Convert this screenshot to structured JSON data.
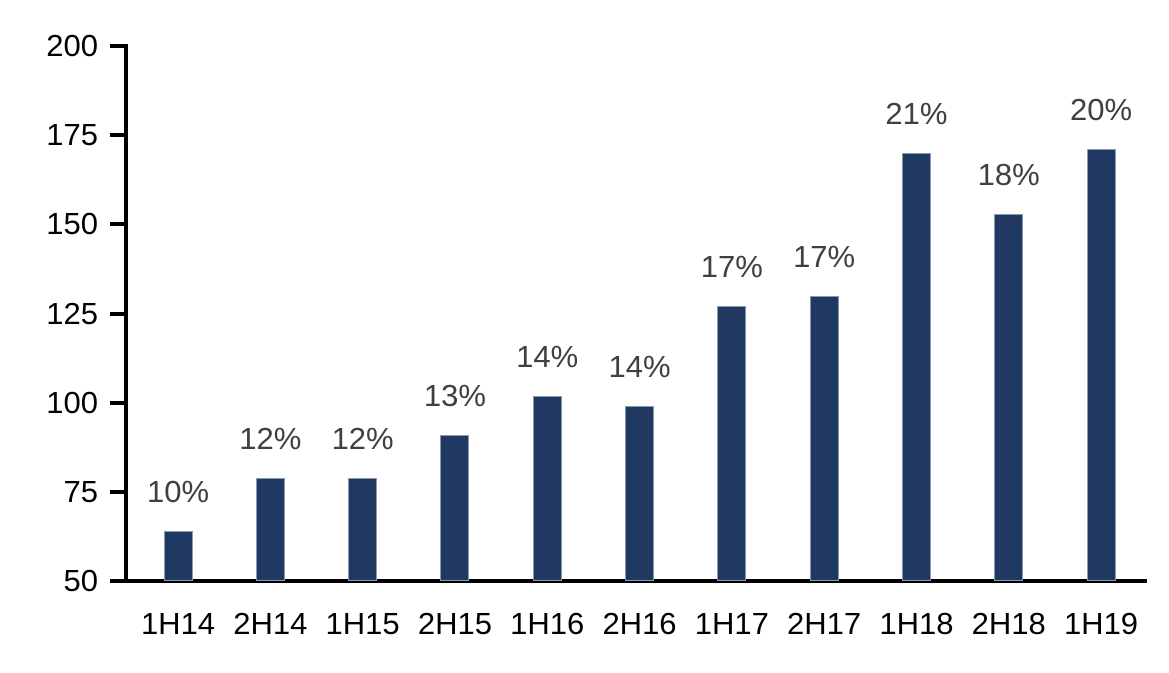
{
  "chart_data": {
    "type": "bar",
    "title": "",
    "xlabel": "",
    "ylabel": "",
    "categories": [
      "1H14",
      "2H14",
      "1H15",
      "2H15",
      "1H16",
      "2H16",
      "1H17",
      "2H17",
      "1H18",
      "2H18",
      "1H19"
    ],
    "values": [
      64,
      79,
      79,
      91,
      102,
      99,
      127,
      130,
      170,
      153,
      171
    ],
    "bar_labels": [
      "10%",
      "12%",
      "12%",
      "13%",
      "14%",
      "14%",
      "17%",
      "17%",
      "21%",
      "18%",
      "20%"
    ],
    "ylim": [
      50,
      200
    ],
    "y_ticks": [
      50,
      75,
      100,
      125,
      150,
      175,
      200
    ],
    "grid": false,
    "legend": false,
    "colors": {
      "bar_fill": "#203963",
      "bar_border": "#8b99b0",
      "value_label": "#404040",
      "axis": "#000000"
    }
  }
}
